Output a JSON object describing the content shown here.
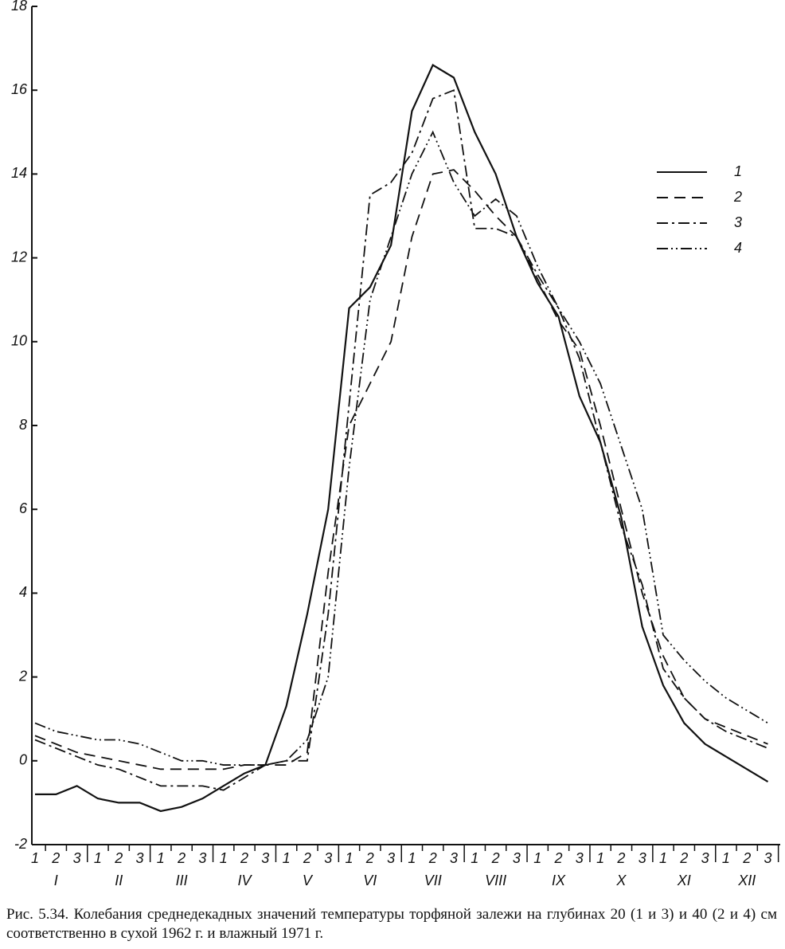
{
  "chart_data": {
    "type": "line",
    "categories": [
      "1",
      "2",
      "3",
      "1",
      "2",
      "3",
      "1",
      "2",
      "3",
      "1",
      "2",
      "3",
      "1",
      "2",
      "3",
      "1",
      "2",
      "3",
      "1",
      "2",
      "3",
      "1",
      "2",
      "3",
      "1",
      "2",
      "3",
      "1",
      "2",
      "3",
      "1",
      "2",
      "3",
      "1",
      "2",
      "3"
    ],
    "months": [
      "I",
      "II",
      "III",
      "IV",
      "V",
      "VI",
      "VII",
      "VIII",
      "IX",
      "X",
      "XI",
      "XII"
    ],
    "ylim": [
      -2,
      18
    ],
    "yticks": [
      -2,
      0,
      2,
      4,
      6,
      8,
      10,
      12,
      14,
      16,
      18
    ],
    "legend": "upper right",
    "series": [
      {
        "name": "1",
        "color": "#111111",
        "dash": "solid",
        "values": [
          -0.8,
          -0.8,
          -0.6,
          -0.9,
          -1.0,
          -1.0,
          -1.2,
          -1.1,
          -0.9,
          -0.6,
          -0.3,
          -0.1,
          1.3,
          3.5,
          6.0,
          10.8,
          11.3,
          12.3,
          15.5,
          16.6,
          16.3,
          15.0,
          14.0,
          12.5,
          11.4,
          10.6,
          8.7,
          7.6,
          5.8,
          3.2,
          1.8,
          0.9,
          0.4,
          0.1,
          -0.2,
          -0.5
        ]
      },
      {
        "name": "2",
        "color": "#111111",
        "dash": "dashed",
        "values": [
          0.6,
          0.4,
          0.2,
          0.1,
          0.0,
          -0.1,
          -0.2,
          -0.2,
          -0.2,
          -0.2,
          -0.1,
          -0.1,
          -0.1,
          0.2,
          4.5,
          8.0,
          9.0,
          10.0,
          12.5,
          14.0,
          14.1,
          13.6,
          13.0,
          12.5,
          11.5,
          10.5,
          9.8,
          8.0,
          6.0,
          4.0,
          2.5,
          1.5,
          1.0,
          0.8,
          0.6,
          0.4
        ]
      },
      {
        "name": "3",
        "color": "#111111",
        "dash": "dashdot",
        "values": [
          0.5,
          0.3,
          0.1,
          -0.1,
          -0.2,
          -0.4,
          -0.6,
          -0.6,
          -0.6,
          -0.7,
          -0.4,
          -0.1,
          0.0,
          0.0,
          3.5,
          8.5,
          13.5,
          13.8,
          14.5,
          15.8,
          16.0,
          12.7,
          12.7,
          12.5,
          11.6,
          10.8,
          9.6,
          7.6,
          5.6,
          4.2,
          2.2,
          1.5,
          1.0,
          0.7,
          0.5,
          0.3
        ]
      },
      {
        "name": "4",
        "color": "#111111",
        "dash": "dashdotdot",
        "values": [
          0.9,
          0.7,
          0.6,
          0.5,
          0.5,
          0.4,
          0.2,
          0.0,
          0.0,
          -0.1,
          -0.1,
          -0.1,
          0.0,
          0.5,
          2.0,
          7.0,
          11.0,
          12.5,
          14.0,
          15.0,
          13.8,
          13.0,
          13.4,
          13.0,
          11.8,
          10.8,
          10.0,
          9.0,
          7.5,
          6.0,
          3.0,
          2.4,
          1.9,
          1.5,
          1.2,
          0.9
        ]
      }
    ],
    "caption": "Рис. 5.34. Колебания среднедекадных значений температуры торфяной залежи на глубинах 20 (1 и 3) и 40 (2 и 4) см соответственно в сухой 1962 г. и влажный 1971 г."
  }
}
